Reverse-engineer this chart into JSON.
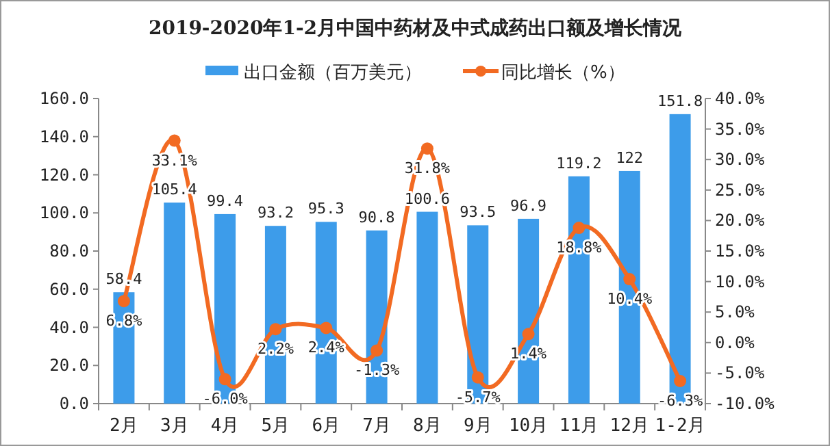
{
  "chart_data": {
    "type": "bar",
    "title": "2019-2020年1-2月中国中药材及中式成药出口额及增长情况",
    "categories": [
      "2月",
      "3月",
      "4月",
      "5月",
      "6月",
      "7月",
      "8月",
      "9月",
      "10月",
      "11月",
      "12月",
      "1-2月"
    ],
    "series": [
      {
        "name": "出口金额（百万美元）",
        "color": "#3d9cea",
        "values": [
          58.4,
          105.4,
          99.4,
          93.2,
          95.3,
          90.8,
          100.6,
          93.5,
          96.9,
          119.2,
          122,
          151.8
        ],
        "value_labels": [
          "58.4",
          "105.4",
          "99.4",
          "93.2",
          "95.3",
          "90.8",
          "100.6",
          "93.5",
          "96.9",
          "119.2",
          "122",
          "151.8"
        ]
      },
      {
        "name": "同比增长（%）",
        "type": "line",
        "axis": "y2",
        "color": "#f26a22",
        "marker": "circle",
        "values": [
          6.8,
          33.1,
          -6.0,
          2.2,
          2.4,
          -1.3,
          31.8,
          -5.7,
          1.4,
          18.8,
          10.4,
          -6.3
        ],
        "value_labels": [
          "6.8%",
          "33.1%",
          "-6.0%",
          "2.2%",
          "2.4%",
          "-1.3%",
          "31.8%",
          "-5.7%",
          "1.4%",
          "18.8%",
          "10.4%",
          "-6.3%"
        ]
      }
    ],
    "ylim": [
      0,
      160
    ],
    "yticks": [
      {
        "value": 0,
        "label": "0.0"
      },
      {
        "value": 20,
        "label": "20.0"
      },
      {
        "value": 40,
        "label": "40.0"
      },
      {
        "value": 60,
        "label": "60.0"
      },
      {
        "value": 80,
        "label": "80.0"
      },
      {
        "value": 100,
        "label": "100.0"
      },
      {
        "value": 120,
        "label": "120.0"
      },
      {
        "value": 140,
        "label": "140.0"
      },
      {
        "value": 160,
        "label": "160.0"
      }
    ],
    "y2lim": [
      -10,
      40
    ],
    "y2ticks": [
      {
        "value": -10,
        "label": "-10.0%"
      },
      {
        "value": -5,
        "label": "-5.0%"
      },
      {
        "value": 0,
        "label": "0.0%"
      },
      {
        "value": 5,
        "label": "5.0%"
      },
      {
        "value": 10,
        "label": "10.0%"
      },
      {
        "value": 15,
        "label": "15.0%"
      },
      {
        "value": 20,
        "label": "20.0%"
      },
      {
        "value": 25,
        "label": "25.0%"
      },
      {
        "value": 30,
        "label": "30.0%"
      },
      {
        "value": 35,
        "label": "35.0%"
      },
      {
        "value": 40,
        "label": "40.0%"
      }
    ],
    "legend": "top"
  }
}
